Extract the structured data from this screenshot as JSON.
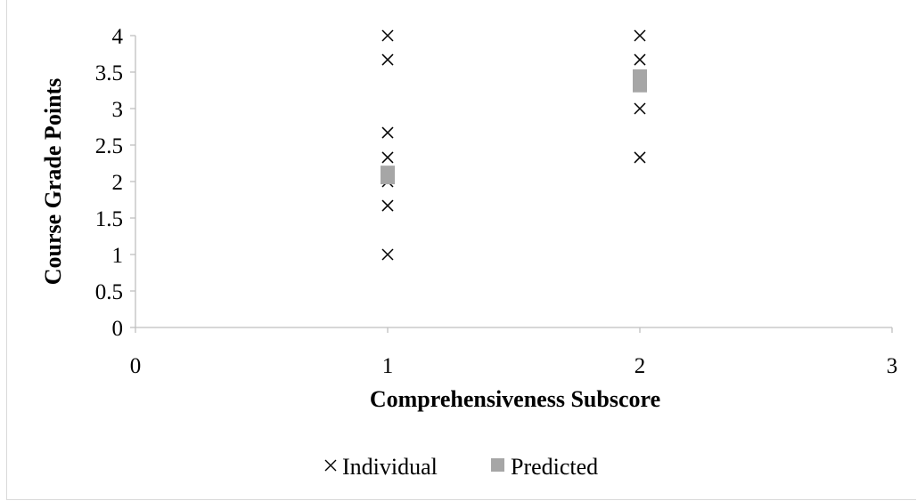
{
  "chart_data": {
    "type": "scatter",
    "title": "",
    "xlabel": "Comprehensiveness Subscore",
    "ylabel": "Course Grade Points",
    "xlim": [
      0,
      3
    ],
    "ylim": [
      0,
      4
    ],
    "xticks": [
      "0",
      "1",
      "2",
      "3"
    ],
    "yticks": [
      "0",
      "0.5",
      "1",
      "1.5",
      "2",
      "2.5",
      "3",
      "3.5",
      "4"
    ],
    "grid": false,
    "legend_position": "bottom",
    "series": [
      {
        "name": "Individual",
        "marker": "x",
        "color": "#000000",
        "points": [
          {
            "x": 1,
            "y": 4.0
          },
          {
            "x": 1,
            "y": 3.67
          },
          {
            "x": 1,
            "y": 2.67
          },
          {
            "x": 1,
            "y": 2.33
          },
          {
            "x": 1,
            "y": 2.0
          },
          {
            "x": 1,
            "y": 1.67
          },
          {
            "x": 1,
            "y": 1.0
          },
          {
            "x": 2,
            "y": 4.0
          },
          {
            "x": 2,
            "y": 3.67
          },
          {
            "x": 2,
            "y": 3.0
          },
          {
            "x": 2,
            "y": 2.33
          }
        ]
      },
      {
        "name": "Predicted",
        "marker": "square",
        "color": "#a6a6a6",
        "points": [
          {
            "x": 1,
            "y": 2.06
          },
          {
            "x": 1,
            "y": 2.12
          },
          {
            "x": 2,
            "y": 3.32
          },
          {
            "x": 2,
            "y": 3.38
          },
          {
            "x": 2,
            "y": 3.44
          }
        ]
      }
    ]
  }
}
